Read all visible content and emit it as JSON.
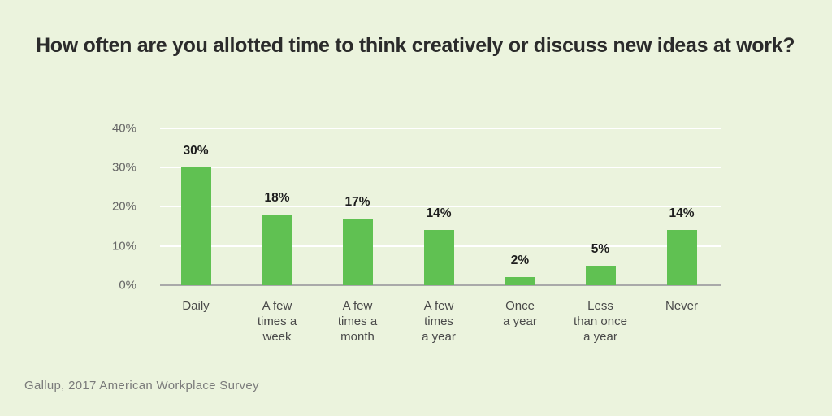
{
  "title": "How often are you allotted time to think creatively or discuss new ideas at work?",
  "source": "Gallup, 2017 American Workplace Survey",
  "colors": {
    "background": "#ebf3dd",
    "bar": "#60c152",
    "grid": "#ffffff",
    "axis": "#a9a9a9",
    "title": "#2b2b2b"
  },
  "y_axis": {
    "ticks": [
      "0%",
      "10%",
      "20%",
      "30%",
      "40%"
    ]
  },
  "bars": [
    {
      "label": "Daily",
      "value_label": "30%"
    },
    {
      "label": "A few\ntimes a\nweek",
      "value_label": "18%"
    },
    {
      "label": "A few\ntimes a\nmonth",
      "value_label": "17%"
    },
    {
      "label": "A few\ntimes\na year",
      "value_label": "14%"
    },
    {
      "label": "Once\na year",
      "value_label": "2%"
    },
    {
      "label": "Less\nthan once\na year",
      "value_label": "5%"
    },
    {
      "label": "Never",
      "value_label": "14%"
    }
  ],
  "chart_data": {
    "type": "bar",
    "title": "How often are you allotted time to think creatively or discuss new ideas at work?",
    "categories": [
      "Daily",
      "A few times a week",
      "A few times a month",
      "A few times a year",
      "Once a year",
      "Less than once a year",
      "Never"
    ],
    "values": [
      30,
      18,
      17,
      14,
      2,
      5,
      14
    ],
    "value_labels": [
      "30%",
      "18%",
      "17%",
      "14%",
      "2%",
      "5%",
      "14%"
    ],
    "xlabel": "",
    "ylabel": "",
    "ylim": [
      0,
      40
    ],
    "yticks": [
      "0%",
      "10%",
      "20%",
      "30%",
      "40%"
    ],
    "grid": true,
    "legend": null,
    "source": "Gallup, 2017 American Workplace Survey"
  }
}
